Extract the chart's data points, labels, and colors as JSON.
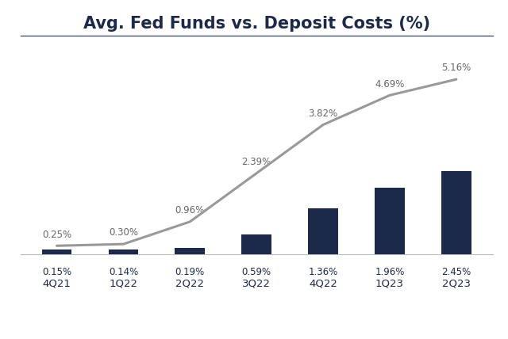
{
  "categories": [
    "4Q21",
    "1Q22",
    "2Q22",
    "3Q22",
    "4Q22",
    "1Q23",
    "2Q23"
  ],
  "bar_values": [
    0.15,
    0.14,
    0.19,
    0.59,
    1.36,
    1.96,
    2.45
  ],
  "line_values": [
    0.25,
    0.3,
    0.96,
    2.39,
    3.82,
    4.69,
    5.16
  ],
  "bar_labels": [
    "0.15%",
    "0.14%",
    "0.19%",
    "0.59%",
    "1.36%",
    "1.96%",
    "2.45%"
  ],
  "line_labels": [
    "0.25%",
    "0.30%",
    "0.96%",
    "2.39%",
    "3.82%",
    "4.69%",
    "5.16%"
  ],
  "bar_color": "#1b2a4a",
  "line_color": "#999999",
  "title": "Avg. Fed Funds vs. Deposit Costs (%)",
  "title_color": "#1b2a4a",
  "title_fontsize": 15,
  "ylim": [
    0,
    6.2
  ],
  "background_color": "#ffffff",
  "bar_label_color": "#1b2a4a",
  "line_label_color": "#666666",
  "axis_label_color": "#1b2a4a",
  "bar_width": 0.45
}
